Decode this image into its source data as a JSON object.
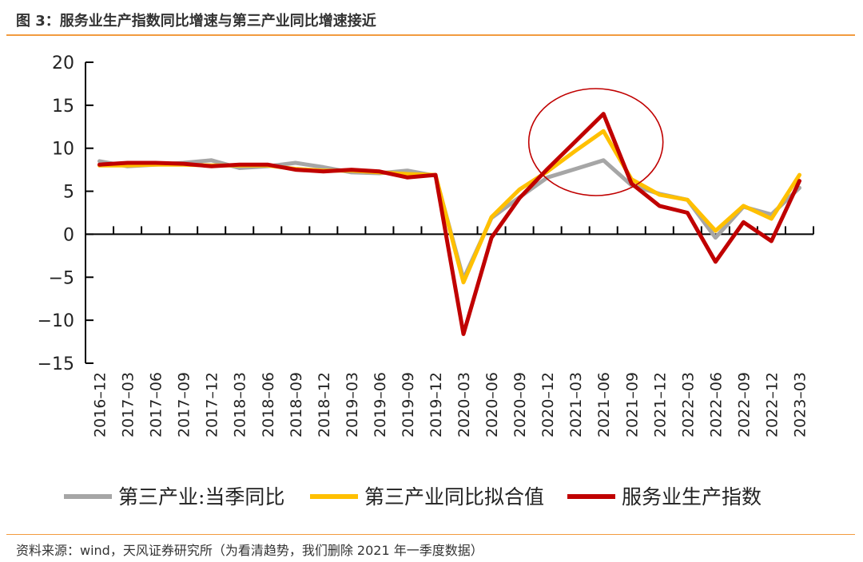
{
  "header": {
    "title": "图 3：服务业生产指数同比增速与第三产业同比增速接近"
  },
  "footer": {
    "source": "资料来源：wind，天风证券研究所（为看清趋势，我们删除 2021 年一季度数据）"
  },
  "chart_data": {
    "type": "line",
    "title": "",
    "xlabel": "",
    "ylabel": "",
    "ylim": [
      -15,
      20
    ],
    "yticks": [
      20,
      15,
      10,
      5,
      0,
      -5,
      -10,
      -15
    ],
    "grid": false,
    "legend_position": "bottom",
    "categories": [
      "2016-12",
      "2017-03",
      "2017-06",
      "2017-09",
      "2017-12",
      "2018-03",
      "2018-06",
      "2018-09",
      "2018-12",
      "2019-03",
      "2019-06",
      "2019-09",
      "2019-12",
      "2020-03",
      "2020-06",
      "2020-09",
      "2020-12",
      "2021-03",
      "2021-06",
      "2021-09",
      "2021-12",
      "2022-03",
      "2022-06",
      "2022-09",
      "2022-12",
      "2023-03"
    ],
    "series": [
      {
        "name": "第三产业:当季同比",
        "color": "#a6a6a6",
        "values": [
          8.5,
          7.9,
          8.1,
          8.3,
          8.6,
          7.7,
          7.9,
          8.3,
          7.8,
          7.2,
          7.1,
          7.4,
          6.8,
          -5.2,
          1.9,
          4.3,
          6.6,
          7.6,
          8.6,
          5.7,
          4.7,
          4.0,
          -0.4,
          3.2,
          2.3,
          5.4
        ]
      },
      {
        "name": "第三产业同比拟合值",
        "color": "#ffc000",
        "values": [
          8.0,
          8.0,
          8.1,
          8.1,
          8.0,
          8.0,
          8.0,
          7.6,
          7.4,
          7.4,
          7.2,
          7.0,
          6.9,
          -5.6,
          2.0,
          5.2,
          7.3,
          9.7,
          12.0,
          6.4,
          4.6,
          4.0,
          0.4,
          3.3,
          1.8,
          6.9
        ]
      },
      {
        "name": "服务业生产指数",
        "color": "#c00000",
        "values": [
          8.1,
          8.3,
          8.3,
          8.2,
          7.9,
          8.1,
          8.1,
          7.5,
          7.3,
          7.5,
          7.3,
          6.6,
          6.9,
          -11.6,
          -0.4,
          4.2,
          7.6,
          10.8,
          14.0,
          5.9,
          3.3,
          2.5,
          -3.2,
          1.4,
          -0.8,
          6.2
        ]
      }
    ],
    "annotation": {
      "shape": "ellipse",
      "color": "#c00000",
      "around": [
        "2021-03",
        "2021-06"
      ]
    }
  }
}
